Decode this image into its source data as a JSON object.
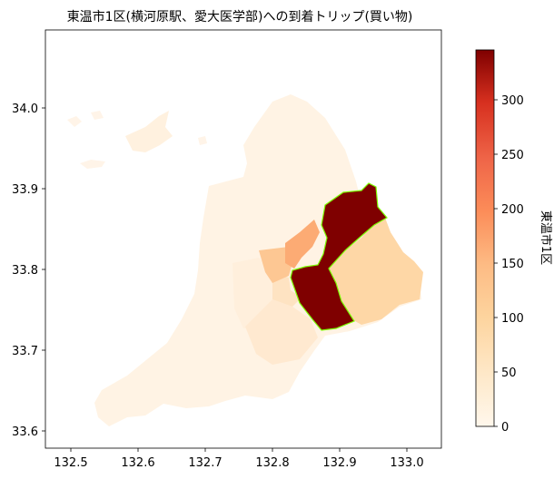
{
  "title": "東温市1区(横河原駅、愛大医学部)への到着トリップ(買い物)",
  "map": {
    "x_ticks": [
      "132.5",
      "132.6",
      "132.7",
      "132.8",
      "132.9",
      "133.0"
    ],
    "y_ticks": [
      "34.0",
      "33.9",
      "33.8",
      "33.7",
      "33.6"
    ],
    "xlim": [
      132.46,
      133.05
    ],
    "ylim": [
      33.585,
      34.09
    ],
    "highlight_outline_color": "#7CFC00"
  },
  "colorbar": {
    "label": "東温市1区",
    "ticks": [
      "0",
      "50",
      "100",
      "150",
      "200",
      "250",
      "300"
    ],
    "range": [
      0,
      345
    ],
    "colormap": "OrRd",
    "colors": {
      "low": "#fff7ec",
      "mid": "#fdbb84",
      "high": "#7f0000"
    }
  }
}
